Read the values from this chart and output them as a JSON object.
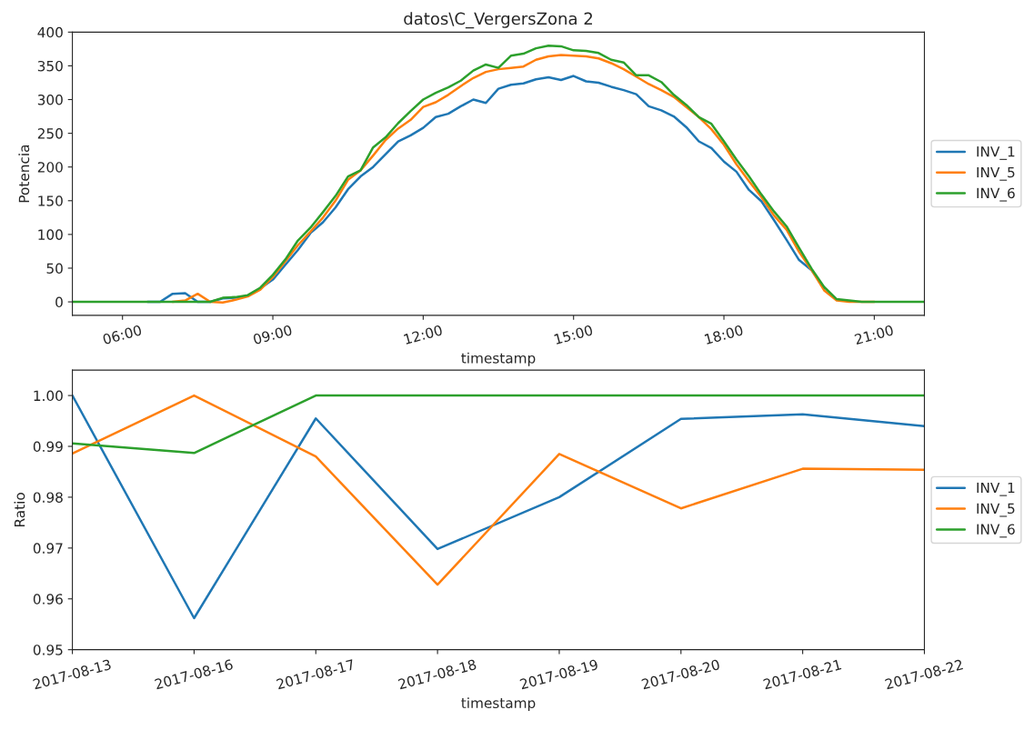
{
  "chart_data": [
    {
      "type": "line",
      "title": "datos\\C_VergersZona 2",
      "xlabel": "timestamp",
      "ylabel": "Potencia",
      "x": [
        5.0,
        5.25,
        5.5,
        5.75,
        6.0,
        6.25,
        6.5,
        6.75,
        7.0,
        7.25,
        7.5,
        7.75,
        8.0,
        8.25,
        8.5,
        8.75,
        9.0,
        9.25,
        9.5,
        9.75,
        10.0,
        10.25,
        10.5,
        10.75,
        11.0,
        11.25,
        11.5,
        11.75,
        12.0,
        12.25,
        12.5,
        12.75,
        13.0,
        13.25,
        13.5,
        13.75,
        14.0,
        14.25,
        14.5,
        14.75,
        15.0,
        15.25,
        15.5,
        15.75,
        16.0,
        16.25,
        16.5,
        16.75,
        17.0,
        17.25,
        17.5,
        17.75,
        18.0,
        18.25,
        18.5,
        18.75,
        19.0,
        19.25,
        19.5,
        19.75,
        20.0,
        20.25,
        20.5,
        20.75,
        21.0,
        21.25,
        21.5,
        21.75,
        22.0
      ],
      "series": [
        {
          "name": "INV_1",
          "color": "#1f77b4",
          "values": [
            null,
            null,
            null,
            null,
            null,
            null,
            0,
            0,
            12,
            13,
            0,
            0,
            5,
            6,
            9,
            20,
            33,
            55,
            77,
            102,
            118,
            140,
            167,
            186,
            200,
            219,
            238,
            247,
            258,
            274,
            279,
            290,
            300,
            295,
            316,
            322,
            324,
            330,
            333,
            329,
            335,
            327,
            325,
            319,
            314,
            308,
            290,
            284,
            275,
            259,
            238,
            228,
            208,
            193,
            166,
            149,
            121,
            92,
            62,
            47,
            20,
            null,
            null,
            null,
            null,
            null,
            null,
            null,
            null
          ]
        },
        {
          "name": "INV_5",
          "color": "#ff7f0e",
          "values": [
            null,
            null,
            null,
            null,
            null,
            null,
            null,
            null,
            0,
            2,
            12,
            0,
            -1,
            3,
            8,
            18,
            37,
            60,
            84,
            104,
            125,
            150,
            181,
            195,
            217,
            240,
            257,
            270,
            289,
            296,
            307,
            320,
            332,
            341,
            345,
            347,
            349,
            359,
            364,
            366,
            365,
            364,
            361,
            354,
            345,
            334,
            323,
            314,
            304,
            289,
            274,
            256,
            233,
            204,
            179,
            155,
            128,
            107,
            74,
            47,
            17,
            2,
            0,
            0,
            0,
            null,
            null,
            null,
            null
          ]
        },
        {
          "name": "INV_6",
          "color": "#2ca02c",
          "values": [
            0,
            0,
            0,
            0,
            0,
            0,
            0,
            0,
            0,
            0,
            0,
            0,
            6,
            7,
            10,
            21,
            40,
            63,
            91,
            110,
            133,
            157,
            186,
            195,
            229,
            244,
            265,
            283,
            300,
            310,
            318,
            328,
            343,
            352,
            347,
            365,
            368,
            376,
            380,
            379,
            373,
            372,
            369,
            359,
            355,
            336,
            336,
            326,
            307,
            292,
            274,
            264,
            238,
            211,
            186,
            159,
            134,
            112,
            80,
            49,
            22,
            4,
            2,
            0,
            0,
            0,
            0,
            0,
            0
          ]
        }
      ],
      "xlim": [
        5,
        22
      ],
      "xticks": [
        {
          "value": 6,
          "label": "06:00"
        },
        {
          "value": 9,
          "label": "09:00"
        },
        {
          "value": 12,
          "label": "12:00"
        },
        {
          "value": 15,
          "label": "15:00"
        },
        {
          "value": 18,
          "label": "18:00"
        },
        {
          "value": 21,
          "label": "21:00"
        }
      ],
      "ylim": [
        -20,
        400
      ],
      "yticks": [
        0,
        50,
        100,
        150,
        200,
        250,
        300,
        350,
        400
      ],
      "legend": "right",
      "grid": false
    },
    {
      "type": "line",
      "xlabel": "timestamp",
      "ylabel": "Ratio",
      "categories": [
        "2017-08-13",
        "2017-08-16",
        "2017-08-17",
        "2017-08-18",
        "2017-08-19",
        "2017-08-20",
        "2017-08-21",
        "2017-08-22"
      ],
      "series": [
        {
          "name": "INV_1",
          "color": "#1f77b4",
          "values": [
            1.0,
            0.9562,
            0.9955,
            0.9698,
            0.98,
            0.9954,
            0.9963,
            0.994
          ]
        },
        {
          "name": "INV_5",
          "color": "#ff7f0e",
          "values": [
            0.9886,
            1.0,
            0.988,
            0.9628,
            0.9885,
            0.9778,
            0.9856,
            0.9854
          ]
        },
        {
          "name": "INV_6",
          "color": "#2ca02c",
          "values": [
            0.9906,
            0.9887,
            1.0,
            1.0,
            1.0,
            1.0,
            1.0,
            1.0
          ]
        }
      ],
      "ylim": [
        0.95,
        1.005
      ],
      "yticks": [
        {
          "value": 0.95,
          "label": "0.95"
        },
        {
          "value": 0.96,
          "label": "0.96"
        },
        {
          "value": 0.97,
          "label": "0.97"
        },
        {
          "value": 0.98,
          "label": "0.98"
        },
        {
          "value": 0.99,
          "label": "0.99"
        },
        {
          "value": 1.0,
          "label": "1.00"
        }
      ],
      "legend": "right",
      "grid": false
    }
  ]
}
